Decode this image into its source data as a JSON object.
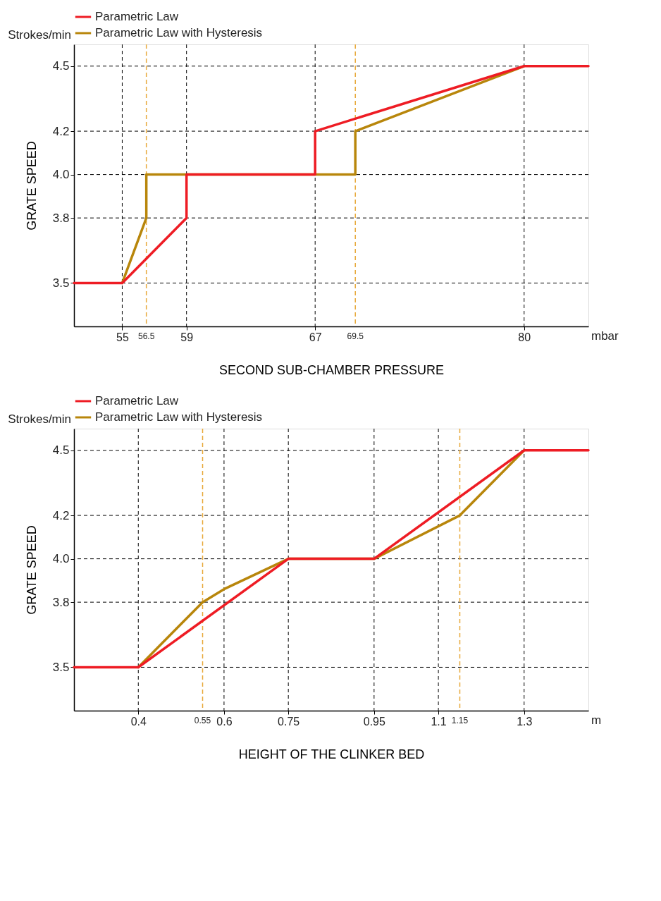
{
  "chart_data": [
    {
      "type": "line",
      "xlabel": "SECOND SUB-CHAMBER PRESSURE",
      "ylabel": "GRATE SPEED",
      "annotations": [
        "mbar",
        "Strokes/min"
      ],
      "xlim": [
        52,
        84
      ],
      "xticks": [
        55,
        59,
        67,
        80
      ],
      "ylim": [
        3.3,
        4.6
      ],
      "yticks": [
        3.5,
        3.8,
        {
          "value": 4,
          "label": "4.0"
        },
        4.2,
        4.5
      ],
      "grid": true,
      "legend": "top",
      "line_style": "solid",
      "series": [
        {
          "name": "Parametric Law",
          "color": "#ee1c24",
          "x": [
            52,
            55,
            59,
            59,
            67,
            67,
            80,
            84
          ],
          "values": [
            3.5,
            3.5,
            3.8,
            4.0,
            4.0,
            4.2,
            4.5,
            4.5
          ]
        },
        {
          "name": "Parametric Law with Hysteresis",
          "color": "#b8860b",
          "x": [
            55,
            56.5,
            56.5,
            59,
            67,
            69.5,
            69.5,
            80
          ],
          "values": [
            3.5,
            3.8,
            4.0,
            4.0,
            4.0,
            4.0,
            4.2,
            4.5
          ]
        }
      ],
      "ref_lines": [
        {
          "axis": "x",
          "value": 56.5,
          "label": "56.5",
          "color": "#e8a93a",
          "line_style": "dashed"
        },
        {
          "axis": "x",
          "value": 69.5,
          "label": "69.5",
          "color": "#e8a93a",
          "line_style": "dashed"
        }
      ]
    },
    {
      "type": "line",
      "xlabel": "HEIGHT OF THE CLINKER BED",
      "ylabel": "GRATE SPEED",
      "annotations": [
        "m",
        "Strokes/min"
      ],
      "xlim": [
        0.25,
        1.45
      ],
      "xticks": [
        0.4,
        0.6,
        0.75,
        0.95,
        1.1,
        1.3
      ],
      "ylim": [
        3.3,
        4.6
      ],
      "yticks": [
        3.5,
        3.8,
        {
          "value": 4,
          "label": "4.0"
        },
        4.2,
        4.5
      ],
      "grid": true,
      "legend": "top",
      "line_style": "solid",
      "series": [
        {
          "name": "Parametric Law",
          "color": "#ee1c24",
          "x": [
            0.25,
            0.4,
            0.75,
            0.95,
            1.3,
            1.45
          ],
          "values": [
            3.5,
            3.5,
            4.0,
            4.0,
            4.5,
            4.5
          ]
        },
        {
          "name": "Parametric Law with Hysteresis",
          "color": "#b8860b",
          "x": [
            0.4,
            0.55,
            0.6,
            0.75,
            0.95,
            1.15,
            1.3
          ],
          "values": [
            3.5,
            3.8,
            3.86,
            4.0,
            4.0,
            4.2,
            4.5
          ]
        }
      ],
      "ref_lines": [
        {
          "axis": "x",
          "value": 0.55,
          "label": "0.55",
          "color": "#e8a93a",
          "line_style": "dashed"
        },
        {
          "axis": "x",
          "value": 1.15,
          "label": "1.15",
          "color": "#e8a93a",
          "line_style": "dashed"
        }
      ]
    }
  ]
}
